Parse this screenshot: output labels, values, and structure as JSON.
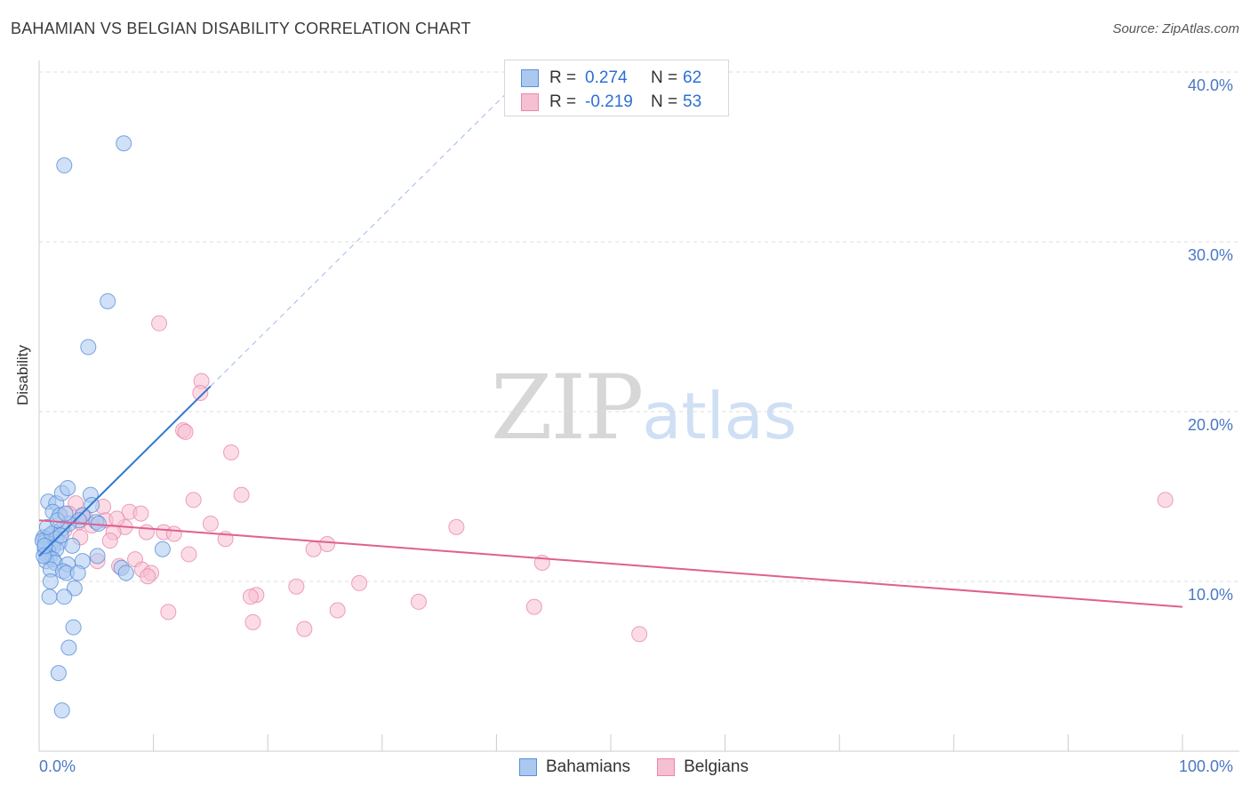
{
  "title": "BAHAMIAN VS BELGIAN DISABILITY CORRELATION CHART",
  "source": "Source: ZipAtlas.com",
  "watermark": {
    "zip": "ZIP",
    "atlas": "atlas"
  },
  "legend_top": {
    "rows": [
      {
        "r_label": "R =",
        "r_value": "0.274",
        "n_label": "N =",
        "n_value": "62"
      },
      {
        "r_label": "R =",
        "r_value": "-0.219",
        "n_label": "N =",
        "n_value": "53"
      }
    ]
  },
  "legend_bottom": {
    "series1": "Bahamians",
    "series2": "Belgians"
  },
  "colors": {
    "bahamian_fill": "#aac8f0",
    "bahamian_stroke": "#5a8fd8",
    "bahamian_line": "#2f78d4",
    "belgian_fill": "#f7bfd2",
    "belgian_stroke": "#e888aa",
    "belgian_line": "#e0608c",
    "tick_label": "#4a78c2",
    "grid": "#dddddd"
  },
  "chart_data": {
    "type": "scatter",
    "title": "BAHAMIAN VS BELGIAN DISABILITY CORRELATION CHART",
    "xlabel": "",
    "ylabel": "Disability",
    "xlim": [
      0,
      100
    ],
    "ylim": [
      0,
      42
    ],
    "y_ticks": [
      10,
      20,
      30,
      40
    ],
    "y_tick_labels": [
      "10.0%",
      "20.0%",
      "30.0%",
      "40.0%"
    ],
    "x_tick_labels": [
      "0.0%",
      "100.0%"
    ],
    "grid": true,
    "legend": "top-center",
    "series": [
      {
        "name": "Bahamians",
        "R": 0.274,
        "N": 62,
        "trend": {
          "x0": 0,
          "y0": 11.5,
          "x1": 15,
          "y1": 21.5,
          "dashed_to_x": 42
        },
        "points": [
          [
            7.4,
            35.8
          ],
          [
            2.2,
            34.5
          ],
          [
            6.0,
            26.5
          ],
          [
            4.3,
            23.8
          ],
          [
            0.8,
            14.7
          ],
          [
            1.5,
            14.6
          ],
          [
            2.0,
            15.2
          ],
          [
            2.5,
            15.5
          ],
          [
            4.5,
            15.1
          ],
          [
            4.6,
            14.5
          ],
          [
            1.2,
            14.1
          ],
          [
            1.8,
            13.9
          ],
          [
            3.8,
            13.9
          ],
          [
            3.5,
            13.6
          ],
          [
            5.0,
            13.5
          ],
          [
            5.2,
            13.4
          ],
          [
            2.6,
            13.4
          ],
          [
            2.0,
            13.1
          ],
          [
            1.3,
            12.9
          ],
          [
            0.9,
            12.7
          ],
          [
            0.4,
            12.6
          ],
          [
            0.6,
            12.5
          ],
          [
            1.5,
            12.5
          ],
          [
            0.5,
            12.3
          ],
          [
            1.0,
            12.2
          ],
          [
            1.8,
            12.3
          ],
          [
            1.2,
            12.0
          ],
          [
            0.5,
            11.9
          ],
          [
            0.8,
            11.8
          ],
          [
            1.5,
            11.9
          ],
          [
            0.6,
            11.6
          ],
          [
            0.9,
            11.4
          ],
          [
            1.2,
            11.3
          ],
          [
            0.6,
            11.2
          ],
          [
            1.4,
            11.1
          ],
          [
            2.5,
            11.0
          ],
          [
            3.8,
            11.2
          ],
          [
            5.1,
            11.5
          ],
          [
            10.8,
            11.9
          ],
          [
            1.0,
            10.7
          ],
          [
            2.1,
            10.6
          ],
          [
            2.4,
            10.5
          ],
          [
            3.4,
            10.5
          ],
          [
            7.2,
            10.8
          ],
          [
            7.6,
            10.5
          ],
          [
            1.0,
            10.0
          ],
          [
            3.1,
            9.6
          ],
          [
            0.9,
            9.1
          ],
          [
            2.2,
            9.1
          ],
          [
            3.0,
            7.3
          ],
          [
            2.6,
            6.1
          ],
          [
            1.7,
            4.6
          ],
          [
            2.0,
            2.4
          ],
          [
            0.3,
            12.4
          ],
          [
            1.1,
            12.8
          ],
          [
            2.9,
            12.1
          ],
          [
            0.7,
            13.2
          ],
          [
            1.6,
            13.6
          ],
          [
            0.4,
            11.5
          ],
          [
            2.3,
            14.0
          ],
          [
            1.9,
            12.7
          ],
          [
            0.5,
            12.1
          ]
        ]
      },
      {
        "name": "Belgians",
        "R": -0.219,
        "N": 53,
        "trend": {
          "x0": 0,
          "y0": 13.6,
          "x1": 100,
          "y1": 8.5
        },
        "points": [
          [
            10.5,
            25.2
          ],
          [
            14.2,
            21.8
          ],
          [
            14.1,
            21.1
          ],
          [
            12.6,
            18.9
          ],
          [
            12.8,
            18.8
          ],
          [
            16.8,
            17.6
          ],
          [
            98.5,
            14.8
          ],
          [
            17.7,
            15.1
          ],
          [
            13.5,
            14.8
          ],
          [
            3.2,
            14.6
          ],
          [
            5.6,
            14.4
          ],
          [
            7.9,
            14.1
          ],
          [
            8.9,
            14.0
          ],
          [
            2.6,
            14.0
          ],
          [
            4.0,
            13.8
          ],
          [
            5.8,
            13.6
          ],
          [
            3.5,
            13.5
          ],
          [
            15.0,
            13.4
          ],
          [
            7.5,
            13.2
          ],
          [
            36.5,
            13.2
          ],
          [
            10.9,
            12.9
          ],
          [
            11.8,
            12.8
          ],
          [
            6.5,
            12.9
          ],
          [
            3.6,
            12.6
          ],
          [
            16.3,
            12.5
          ],
          [
            6.2,
            12.4
          ],
          [
            25.2,
            12.2
          ],
          [
            24.0,
            11.9
          ],
          [
            13.1,
            11.6
          ],
          [
            8.4,
            11.3
          ],
          [
            5.1,
            11.2
          ],
          [
            44.0,
            11.1
          ],
          [
            7.0,
            10.9
          ],
          [
            9.0,
            10.7
          ],
          [
            9.8,
            10.5
          ],
          [
            9.5,
            10.3
          ],
          [
            28.0,
            9.9
          ],
          [
            22.5,
            9.7
          ],
          [
            19.0,
            9.2
          ],
          [
            18.5,
            9.1
          ],
          [
            33.2,
            8.8
          ],
          [
            43.3,
            8.5
          ],
          [
            11.3,
            8.2
          ],
          [
            26.1,
            8.3
          ],
          [
            18.7,
            7.6
          ],
          [
            23.2,
            7.2
          ],
          [
            52.5,
            6.9
          ],
          [
            3.8,
            13.9
          ],
          [
            2.2,
            13.0
          ],
          [
            1.5,
            12.5
          ],
          [
            4.6,
            13.3
          ],
          [
            6.8,
            13.7
          ],
          [
            9.4,
            12.9
          ]
        ]
      }
    ]
  }
}
